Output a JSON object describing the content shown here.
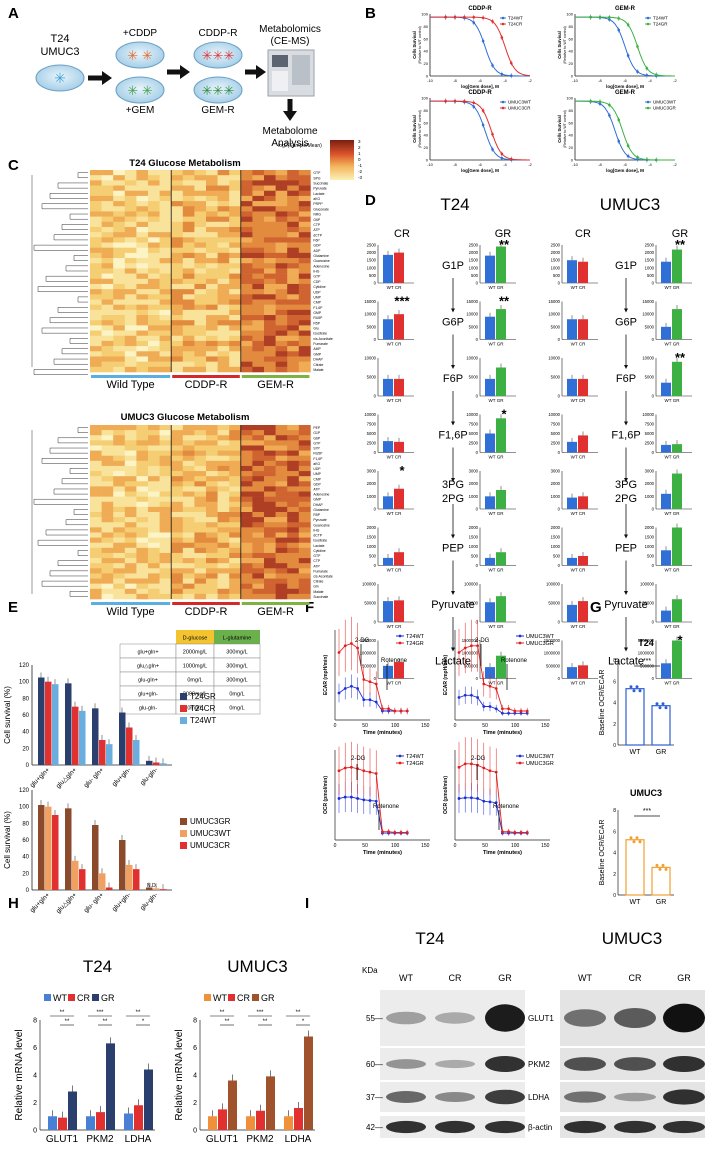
{
  "panel_labels": [
    "A",
    "B",
    "C",
    "D",
    "E",
    "F",
    "G",
    "H",
    "I"
  ],
  "panel_a": {
    "cell_lines": "T24",
    "cell_lines_2": "UMUC3",
    "treat_cddp": "+CDDP",
    "treat_gem": "+GEM",
    "res_cddp": "CDDP-R",
    "res_gem": "GEM-R",
    "metabolomics": "Metabolomics",
    "metabolomics_2": "(CE-MS)",
    "analysis": "Metabolome",
    "analysis_2": "Analysis"
  },
  "panel_b": {
    "xlabel": "log[Gem dose], M",
    "ylabel": "Cells Survival",
    "ylabel_2": "(Relative to WT control)",
    "plots": [
      {
        "title": "CDDP-R",
        "legend": [
          "T24WT",
          "T24CR"
        ],
        "colors": [
          "#2f6fd6",
          "#e03030"
        ],
        "ic50": [
          -5.6,
          -4.0
        ]
      },
      {
        "title": "GEM-R",
        "legend": [
          "T24WT",
          "T24GR"
        ],
        "colors": [
          "#2f6fd6",
          "#3cb043"
        ],
        "ic50": [
          -6.0,
          -5.0
        ]
      },
      {
        "title": "CDDP-R",
        "legend": [
          "UMUC3WT",
          "UMUC3CR"
        ],
        "colors": [
          "#2f6fd6",
          "#e03030"
        ],
        "ic50": [
          -5.6,
          -5.1
        ]
      },
      {
        "title": "GEM-R",
        "legend": [
          "UMUC3WT",
          "UMUC3GR"
        ],
        "colors": [
          "#2f6fd6",
          "#3cb043"
        ],
        "ic50": [
          -6.8,
          -6.2
        ]
      }
    ],
    "xticks": [
      "-10",
      "-8",
      "-6",
      "-4",
      "-2"
    ],
    "yticks": [
      "0",
      "20",
      "40",
      "60",
      "80",
      "100"
    ]
  },
  "panel_c": {
    "title_t24": "T24 Glucose Metabolism",
    "title_umuc3": "UMUC3 Glucose Metabolism",
    "groups": [
      "Wild Type",
      "CDDP-R",
      "GEM-R"
    ],
    "group_colors": [
      "#5aaee0",
      "#d62828",
      "#7cb342"
    ],
    "scale_label": "log2(Sample/Mean)",
    "scale_ticks": [
      "3",
      "2",
      "1",
      "0",
      "-1",
      "-2",
      "-3"
    ],
    "rows_t24": [
      "GTP",
      "SPG",
      "Succinate",
      "Pyruvate",
      "Lactate",
      "aKG",
      "PRPP",
      "Gluconate",
      "NRG",
      "G6P",
      "CTP",
      "ATP",
      "dCTP",
      "F6P",
      "GDP",
      "ADP",
      "Glutamine",
      "Guanosine",
      "Adenosine",
      "IHG",
      "GTP",
      "CDP",
      "Cytidine",
      "UDP",
      "UMP",
      "CMP",
      "F1,6P",
      "GMP",
      "RU5P",
      "R5P",
      "Glu",
      "Isocitrate",
      "cis-Aconitate",
      "Fumarate",
      "AMP",
      "GMP",
      "DHAP",
      "Citrate",
      "Malate"
    ],
    "rows_umuc3": [
      "PEP",
      "G1P",
      "G6P",
      "GTP",
      "S7P",
      "RU5P",
      "F1,6P",
      "aKG",
      "UDP",
      "UMP",
      "CMP",
      "GDP",
      "ATP",
      "Adenosine",
      "GMP",
      "DHAP",
      "Glutamine",
      "R5P",
      "Pyruvate",
      "Guanosine",
      "IHG",
      "dCTP",
      "Isocitrate",
      "Lactate",
      "Cytidine",
      "GTP",
      "CTP",
      "ATP",
      "Fumarate",
      "cis-Aconitate",
      "Citrate",
      "Gln",
      "Malate",
      "Succinate"
    ]
  },
  "panel_d": {
    "t24": "T24",
    "umuc3": "UMUC3",
    "cr": "CR",
    "gr": "GR",
    "metabolites": [
      "G1P",
      "G6P",
      "F6P",
      "F1,6P",
      "3PG\n2PG",
      "PEP",
      "Pyruvate",
      "Lactate"
    ],
    "x_cr": "WT CR",
    "x_gr": "WT GR",
    "yticks": [
      [
        "2500",
        "2000",
        "1500",
        "1000",
        "500",
        "0"
      ],
      [
        "15000",
        "10000",
        "5000",
        "0"
      ],
      [
        "10000",
        "5000",
        "0"
      ],
      [
        "10000",
        "7500",
        "5000",
        "2500",
        "0"
      ],
      [
        "3000",
        "2000",
        "1000",
        "0"
      ],
      [
        "2000",
        "1500",
        "1000",
        "500",
        "0"
      ],
      [
        "100000",
        "50000",
        "0"
      ],
      [
        "1500000",
        "1000000",
        "500000",
        "0"
      ]
    ],
    "values": {
      "t24_cr": [
        [
          1850,
          2000
        ],
        [
          8000,
          10000
        ],
        [
          4500,
          4500
        ],
        [
          3000,
          2800
        ],
        [
          1000,
          1600
        ],
        [
          400,
          700
        ],
        [
          55000,
          57000
        ],
        [
          500000,
          650000
        ]
      ],
      "t24_gr": [
        [
          1800,
          2400
        ],
        [
          9000,
          12000
        ],
        [
          4500,
          7500
        ],
        [
          5000,
          9000
        ],
        [
          1000,
          1500
        ],
        [
          400,
          700
        ],
        [
          52000,
          68000
        ],
        [
          450000,
          900000
        ]
      ],
      "umuc3_cr": [
        [
          1500,
          1400
        ],
        [
          8000,
          8000
        ],
        [
          4500,
          4500
        ],
        [
          2800,
          4500
        ],
        [
          900,
          1000
        ],
        [
          400,
          500
        ],
        [
          45000,
          55000
        ],
        [
          450000,
          520000
        ]
      ],
      "umuc3_gr": [
        [
          1400,
          2200
        ],
        [
          5000,
          12000
        ],
        [
          3500,
          9000
        ],
        [
          2000,
          2200
        ],
        [
          1200,
          2800
        ],
        [
          800,
          2000
        ],
        [
          30000,
          60000
        ],
        [
          600000,
          1500000
        ]
      ]
    },
    "stars": {
      "t24_cr": [
        "",
        "***",
        "",
        "",
        "*",
        "",
        "",
        ""
      ],
      "t24_gr": [
        "**",
        "**",
        "",
        "*",
        "",
        "",
        "",
        ""
      ],
      "umuc3_cr": [
        "",
        "",
        "",
        "",
        "",
        "",
        "",
        ""
      ],
      "umuc3_gr": [
        "**",
        "",
        "**",
        "",
        "",
        "",
        "",
        "*"
      ]
    }
  },
  "panel_e": {
    "ylabel": "Cell survival (%)",
    "yticks": [
      "0",
      "20",
      "40",
      "60",
      "80",
      "100",
      "120"
    ],
    "conditions": [
      "glu+gln+",
      "glu△gln+",
      "glu- gln+",
      "glu+gln-",
      "glu-gln-"
    ],
    "table_head": [
      "D-glucose",
      "L-glutamine"
    ],
    "table_rows": [
      [
        "glu+gln+",
        "2000mg/L",
        "300mg/L"
      ],
      [
        "glu△gln+",
        "1000mg/L",
        "300mg/L"
      ],
      [
        "glu-gln+",
        "0mg/L",
        "300mg/L"
      ],
      [
        "glu+gln-",
        "2000mg/L",
        "0mg/L"
      ],
      [
        "glu-gln-",
        "0mg/L",
        "0mg/L"
      ]
    ],
    "legend_t24": [
      "T24GR",
      "T24CR",
      "T24WT"
    ],
    "legend_umuc3": [
      "UMUC3GR",
      "UMUC3WT",
      "UMUC3CR"
    ],
    "colors_t24": [
      "#2b3f6e",
      "#e03030",
      "#6aaee0"
    ],
    "colors_umuc3": [
      "#8b4a2b",
      "#f0a060",
      "#e03030"
    ],
    "t24_values": [
      [
        105,
        100,
        97
      ],
      [
        98,
        70,
        65
      ],
      [
        68,
        30,
        25
      ],
      [
        63,
        45,
        30
      ],
      [
        5,
        3,
        2
      ]
    ],
    "umuc3_values": [
      [
        102,
        100,
        90
      ],
      [
        98,
        35,
        25
      ],
      [
        78,
        20,
        3
      ],
      [
        60,
        30,
        25
      ],
      [
        3,
        2,
        1
      ]
    ],
    "nd": "N.D."
  },
  "panel_f": {
    "time": "Time (minutes)",
    "ecar": "ECAR (mpH/min)",
    "ocr": "OCR (pmol/min)",
    "dg": "2-DG",
    "rotenone": "Rotenone",
    "legends": [
      [
        "T24WT",
        "T24GR"
      ],
      [
        "UMUC3WT",
        "UMUC3GR"
      ],
      [
        "T24WT",
        "T24GR"
      ],
      [
        "UMUC3WT",
        "UMUC3GR"
      ]
    ],
    "xticks": [
      "0",
      "50",
      "100",
      "150"
    ]
  },
  "panel_g": {
    "t24": "T24",
    "umuc3": "UMUC3",
    "ylabel": "Baseline OCR/ECAR",
    "cats": [
      "WT",
      "GR"
    ],
    "sig": "***",
    "t24_values": [
      5.3,
      3.7
    ],
    "umuc3_values": [
      5.2,
      2.6
    ],
    "yticks": [
      "0",
      "2",
      "4",
      "6",
      "8"
    ]
  },
  "panel_h": {
    "t24": "T24",
    "umuc3": "UMUC3",
    "ylabel": "Relative mRNA level",
    "genes": [
      "GLUT1",
      "PKM2",
      "LDHA"
    ],
    "legend": [
      "WT",
      "CR",
      "GR"
    ],
    "colors_t24": [
      "#4a7fd6",
      "#e03030",
      "#2b3f6e"
    ],
    "colors_umuc3": [
      "#f0903a",
      "#e03030",
      "#a0522d"
    ],
    "t24_values": [
      [
        1.0,
        0.9,
        2.8
      ],
      [
        1.0,
        1.3,
        6.3
      ],
      [
        1.2,
        1.8,
        4.4
      ]
    ],
    "umuc3_values": [
      [
        1.0,
        1.5,
        3.6
      ],
      [
        1.0,
        1.4,
        3.9
      ],
      [
        1.0,
        1.6,
        6.8
      ]
    ],
    "yticks": [
      "0",
      "2",
      "4",
      "6",
      "8"
    ]
  },
  "panel_i": {
    "t24": "T24",
    "umuc3": "UMUC3",
    "kda": "KDa",
    "lanes": [
      "WT",
      "CR",
      "GR"
    ],
    "markers": [
      "55—",
      "60—",
      "37—",
      "42—"
    ],
    "proteins": [
      "GLUT1",
      "PKM2",
      "LDHA",
      "β-actin"
    ]
  }
}
